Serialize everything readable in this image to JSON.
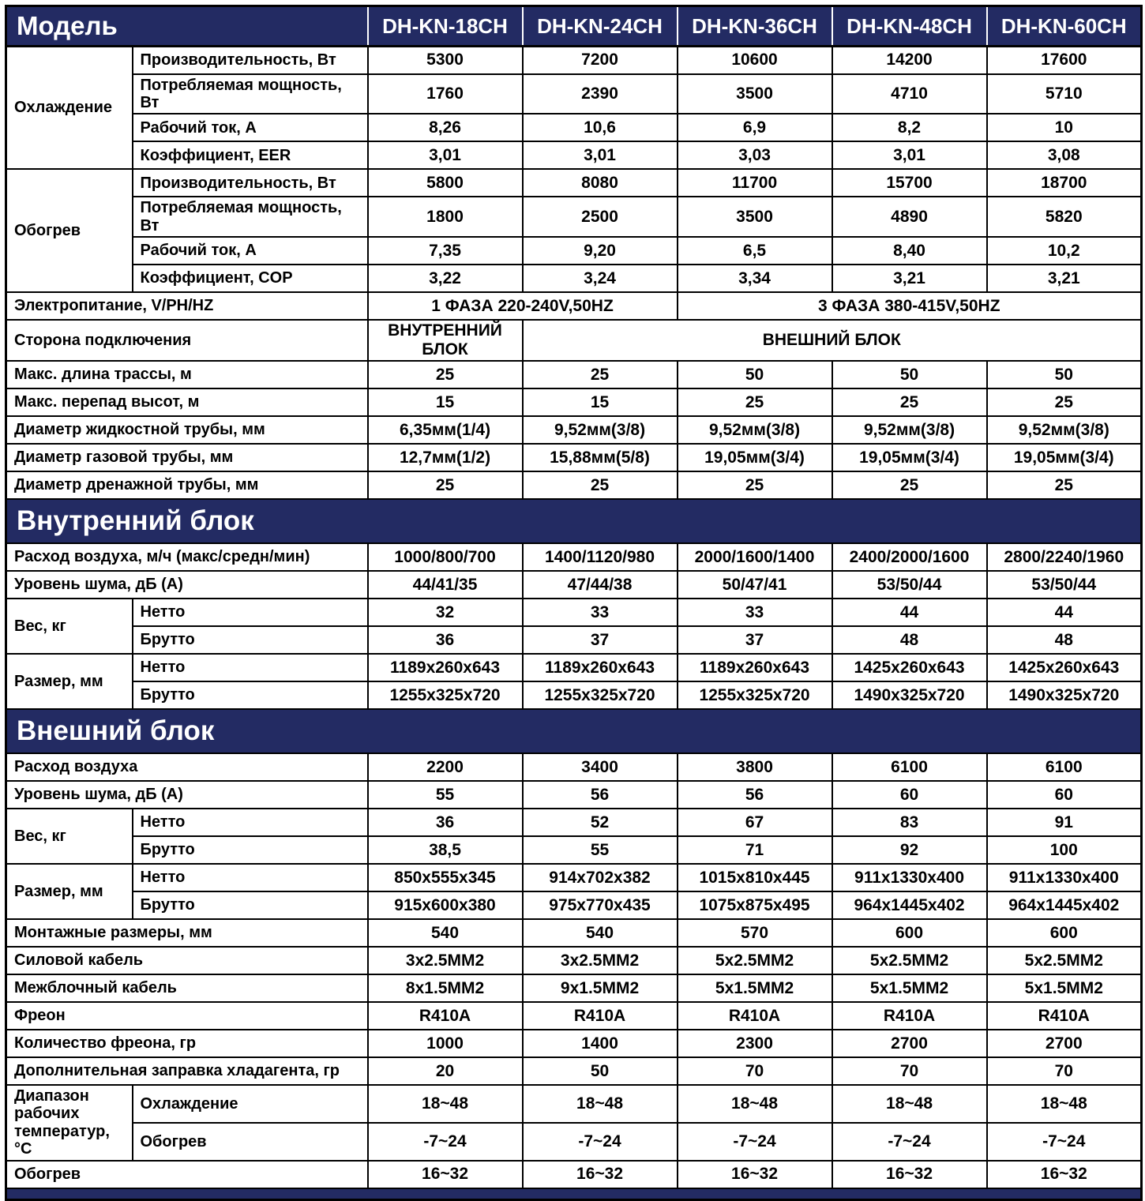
{
  "colors": {
    "navy": "#232b63",
    "border": "#000000",
    "cell_background": "#ffffff",
    "text": "#000000",
    "banner_text": "#ffffff"
  },
  "models_header": {
    "label": "Модель",
    "models": [
      "DH-KN-18CH",
      "DH-KN-24CH",
      "DH-KN-36CH",
      "DH-KN-48CH",
      "DH-KN-60CH"
    ]
  },
  "rows": [
    {
      "type": "group",
      "label": "Охлаждение",
      "children": [
        {
          "label": "Производительность, Вт",
          "values": [
            "5300",
            "7200",
            "10600",
            "14200",
            "17600"
          ]
        },
        {
          "label": "Потребляемая мощность, Вт",
          "values": [
            "1760",
            "2390",
            "3500",
            "4710",
            "5710"
          ]
        },
        {
          "label": "Рабочий ток, А",
          "values": [
            "8,26",
            "10,6",
            "6,9",
            "8,2",
            "10"
          ]
        },
        {
          "label": "Коэффициент, EER",
          "values": [
            "3,01",
            "3,01",
            "3,03",
            "3,01",
            "3,08"
          ]
        }
      ]
    },
    {
      "type": "group",
      "label": "Обогрев",
      "children": [
        {
          "label": "Производительность, Вт",
          "values": [
            "5800",
            "8080",
            "11700",
            "15700",
            "18700"
          ]
        },
        {
          "label": "Потребляемая мощность, Вт",
          "values": [
            "1800",
            "2500",
            "3500",
            "4890",
            "5820"
          ]
        },
        {
          "label": "Рабочий ток, А",
          "values": [
            "7,35",
            "9,20",
            "6,5",
            "8,40",
            "10,2"
          ]
        },
        {
          "label": "Коэффициент, COP",
          "values": [
            "3,22",
            "3,24",
            "3,34",
            "3,21",
            "3,21"
          ]
        }
      ]
    },
    {
      "type": "simple",
      "label": "Электропитание, V/PH/HZ",
      "values": [
        {
          "text": "1 ФАЗА 220-240V,50HZ",
          "span": 2
        },
        {
          "text": "3 ФАЗА 380-415V,50HZ",
          "span": 3
        }
      ]
    },
    {
      "type": "simple",
      "label": "Сторона подключения",
      "values": [
        {
          "text": "ВНУТРЕННИЙ БЛОК",
          "span": 1
        },
        {
          "text": "ВНЕШНИЙ БЛОК",
          "span": 4
        }
      ]
    },
    {
      "type": "simple",
      "label": "Макс. длина трассы, м",
      "values": [
        "25",
        "25",
        "50",
        "50",
        "50"
      ]
    },
    {
      "type": "simple",
      "label": "Макс. перепад высот, м",
      "values": [
        "15",
        "15",
        "25",
        "25",
        "25"
      ]
    },
    {
      "type": "simple",
      "label": "Диаметр жидкостной трубы, мм",
      "values": [
        "6,35мм(1/4)",
        "9,52мм(3/8)",
        "9,52мм(3/8)",
        "9,52мм(3/8)",
        "9,52мм(3/8)"
      ]
    },
    {
      "type": "simple",
      "label": "Диаметр газовой трубы, мм",
      "values": [
        "12,7мм(1/2)",
        "15,88мм(5/8)",
        "19,05мм(3/4)",
        "19,05мм(3/4)",
        "19,05мм(3/4)"
      ]
    },
    {
      "type": "simple",
      "label": "Диаметр дренажной трубы, мм",
      "values": [
        "25",
        "25",
        "25",
        "25",
        "25"
      ]
    },
    {
      "type": "banner",
      "title": "Внутренний блок"
    },
    {
      "type": "simple",
      "label": "Расход воздуха, м/ч (макс/средн/мин)",
      "values": [
        "1000/800/700",
        "1400/1120/980",
        "2000/1600/1400",
        "2400/2000/1600",
        "2800/2240/1960"
      ]
    },
    {
      "type": "simple",
      "label": "Уровень шума, дБ (А)",
      "values": [
        "44/41/35",
        "47/44/38",
        "50/47/41",
        "53/50/44",
        "53/50/44"
      ]
    },
    {
      "type": "group",
      "label": "Вес, кг",
      "children": [
        {
          "label": "Нетто",
          "values": [
            "32",
            "33",
            "33",
            "44",
            "44"
          ]
        },
        {
          "label": "Брутто",
          "values": [
            "36",
            "37",
            "37",
            "48",
            "48"
          ]
        }
      ]
    },
    {
      "type": "group",
      "label": "Размер, мм",
      "children": [
        {
          "label": "Нетто",
          "values": [
            "1189x260x643",
            "1189x260x643",
            "1189x260x643",
            "1425x260x643",
            "1425x260x643"
          ]
        },
        {
          "label": "Брутто",
          "values": [
            "1255x325x720",
            "1255x325x720",
            "1255x325x720",
            "1490x325x720",
            "1490x325x720"
          ]
        }
      ]
    },
    {
      "type": "banner",
      "title": "Внешний блок"
    },
    {
      "type": "simple",
      "label": "Расход воздуха",
      "values": [
        "2200",
        "3400",
        "3800",
        "6100",
        "6100"
      ]
    },
    {
      "type": "simple",
      "label": "Уровень шума, дБ (А)",
      "values": [
        "55",
        "56",
        "56",
        "60",
        "60"
      ]
    },
    {
      "type": "group",
      "label": "Вес, кг",
      "children": [
        {
          "label": "Нетто",
          "values": [
            "36",
            "52",
            "67",
            "83",
            "91"
          ]
        },
        {
          "label": "Брутто",
          "values": [
            "38,5",
            "55",
            "71",
            "92",
            "100"
          ]
        }
      ]
    },
    {
      "type": "group",
      "label": "Размер, мм",
      "children": [
        {
          "label": "Нетто",
          "values": [
            "850x555x345",
            "914x702x382",
            "1015x810x445",
            "911x1330x400",
            "911x1330x400"
          ]
        },
        {
          "label": "Брутто",
          "values": [
            "915x600x380",
            "975x770x435",
            "1075x875x495",
            "964x1445x402",
            "964x1445x402"
          ]
        }
      ]
    },
    {
      "type": "simple",
      "label": "Монтажные размеры, мм",
      "values": [
        "540",
        "540",
        "570",
        "600",
        "600"
      ]
    },
    {
      "type": "simple",
      "label": "Силовой кабель",
      "values": [
        "3x2.5ММ2",
        "3x2.5ММ2",
        "5x2.5ММ2",
        "5x2.5ММ2",
        "5x2.5ММ2"
      ]
    },
    {
      "type": "simple",
      "label": "Межблочный кабель",
      "values": [
        "8x1.5ММ2",
        "9x1.5ММ2",
        "5x1.5ММ2",
        "5x1.5ММ2",
        "5x1.5ММ2"
      ]
    },
    {
      "type": "simple",
      "label": "Фреон",
      "values": [
        "R410A",
        "R410A",
        "R410A",
        "R410A",
        "R410A"
      ]
    },
    {
      "type": "simple",
      "label": "Количество фреона, гр",
      "values": [
        "1000",
        "1400",
        "2300",
        "2700",
        "2700"
      ]
    },
    {
      "type": "simple",
      "label": "Дополнительная заправка хладагента, гр",
      "values": [
        "20",
        "50",
        "70",
        "70",
        "70"
      ]
    },
    {
      "type": "group",
      "label": "Диапазон рабочих температур,°С",
      "children": [
        {
          "label": "Охлаждение",
          "values": [
            "18~48",
            "18~48",
            "18~48",
            "18~48",
            "18~48"
          ]
        },
        {
          "label": "Обогрев",
          "values": [
            "-7~24",
            "-7~24",
            "-7~24",
            "-7~24",
            "-7~24"
          ]
        }
      ]
    },
    {
      "type": "simple",
      "label": "Обогрев",
      "values": [
        "16~32",
        "16~32",
        "16~32",
        "16~32",
        "16~32"
      ]
    },
    {
      "type": "strip"
    }
  ]
}
